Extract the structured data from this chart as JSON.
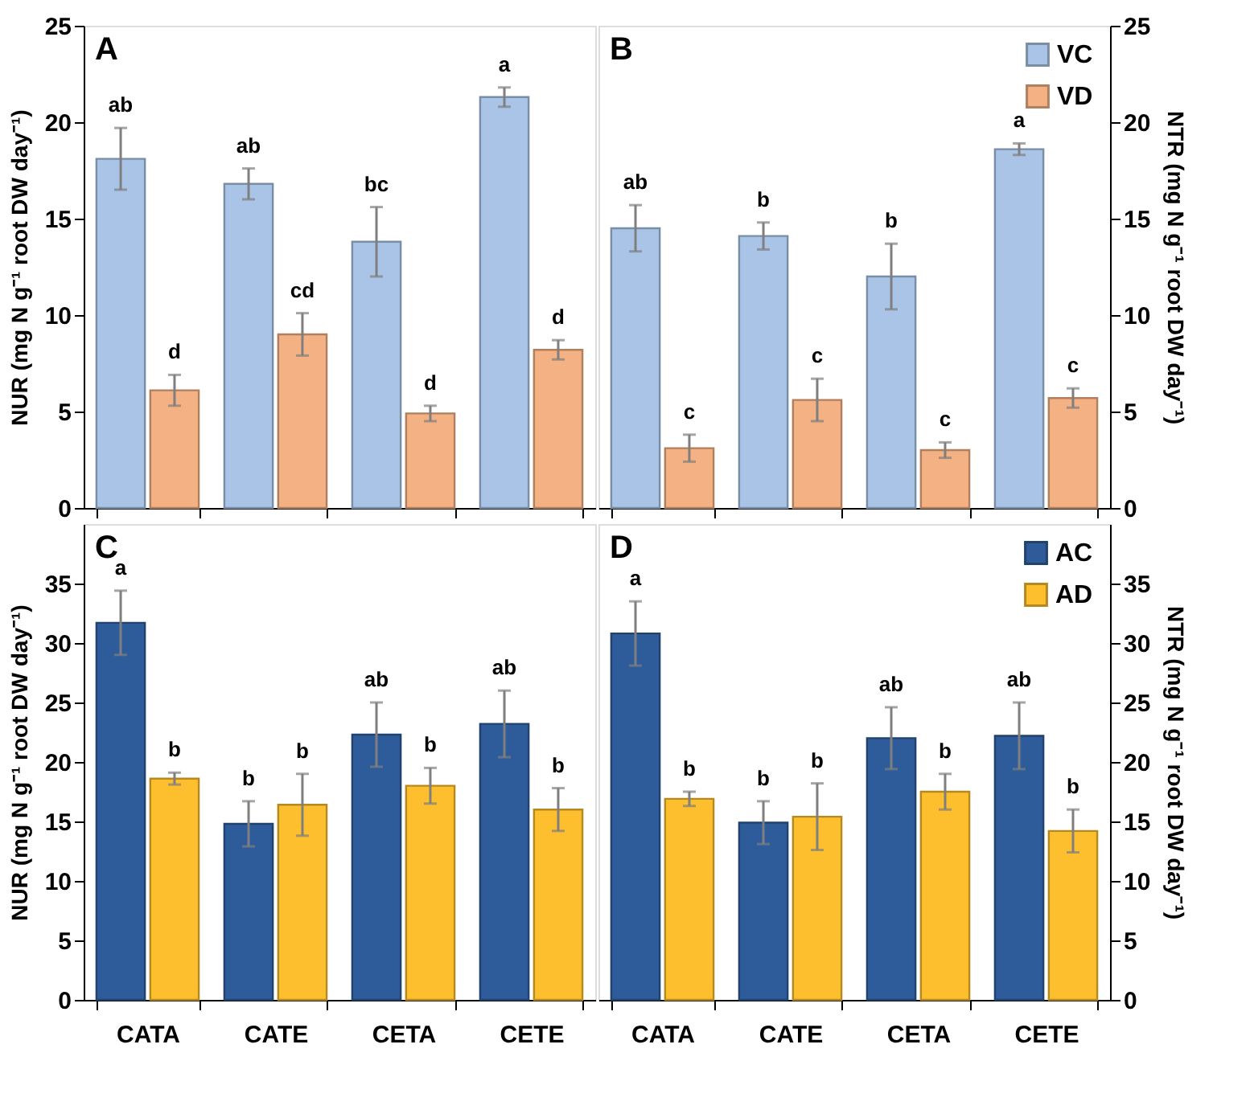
{
  "chart_data": [
    {
      "type": "bar",
      "categories": [
        null,
        null,
        null,
        null
      ],
      "ylabel": "NUR (mg N g⁻¹ root DW day⁻¹)",
      "ylim": [
        0,
        25
      ],
      "yticks": [
        0,
        5,
        10,
        15,
        20,
        25
      ],
      "tick_labels": "y",
      "series": [
        {
          "color": "#a9c4e6",
          "values": [
            18.1,
            16.8,
            13.8,
            21.3
          ],
          "errors": [
            1.6,
            0.8,
            1.8,
            0.5
          ]
        },
        {
          "color": "#f4b183",
          "values": [
            6.1,
            9.0,
            4.9,
            8.2
          ],
          "errors": [
            0.8,
            1.1,
            0.4,
            0.5
          ]
        }
      ],
      "annotations": [
        "A",
        "ab",
        "ab",
        "bc",
        "a",
        "d",
        "cd",
        "d",
        "d"
      ]
    },
    {
      "type": "bar",
      "categories": [
        null,
        null,
        null,
        null
      ],
      "ylabel": "NTR (mg N g⁻¹ root DW day⁻¹)",
      "ylim": [
        0,
        25
      ],
      "yticks": [
        0,
        5,
        10,
        15,
        20,
        25
      ],
      "tick_labels": "y",
      "legend": "top right",
      "series": [
        {
          "name": "VC",
          "color": "#a9c4e6",
          "values": [
            14.5,
            14.1,
            12.0,
            18.6
          ],
          "errors": [
            1.2,
            0.7,
            1.7,
            0.3
          ]
        },
        {
          "name": "VD",
          "color": "#f4b183",
          "values": [
            3.1,
            5.6,
            3.0,
            5.7
          ],
          "errors": [
            0.7,
            1.1,
            0.4,
            0.5
          ]
        }
      ],
      "annotations": [
        "B",
        "ab",
        "b",
        "b",
        "a",
        "c",
        "c",
        "c",
        "c"
      ]
    },
    {
      "type": "bar",
      "categories": [
        "CATA",
        "CATE",
        "CETA",
        "CETE"
      ],
      "ylabel": "NUR (mg N g⁻¹ root DW day⁻¹)",
      "ylim": [
        0,
        40
      ],
      "yticks": [
        0,
        5,
        10,
        15,
        20,
        25,
        30,
        35
      ],
      "series": [
        {
          "color": "#2e5c9a",
          "values": [
            31.7,
            14.8,
            22.3,
            23.2
          ],
          "errors": [
            2.7,
            1.9,
            2.7,
            2.8
          ]
        },
        {
          "color": "#fdbf2d",
          "values": [
            18.6,
            16.4,
            18.0,
            16.0
          ],
          "errors": [
            0.5,
            2.6,
            1.5,
            1.8
          ]
        }
      ],
      "annotations": [
        "C",
        "a",
        "b",
        "ab",
        "ab",
        "b",
        "b",
        "b",
        "b"
      ]
    },
    {
      "type": "bar",
      "categories": [
        "CATA",
        "CATE",
        "CETA",
        "CETE"
      ],
      "ylabel": "NTR (mg N g⁻¹ root DW day⁻¹)",
      "ylim": [
        0,
        40
      ],
      "yticks": [
        0,
        5,
        10,
        15,
        20,
        25,
        30,
        35
      ],
      "legend": "top right",
      "series": [
        {
          "name": "AC",
          "color": "#2e5c9a",
          "values": [
            30.8,
            14.9,
            22.0,
            22.2
          ],
          "errors": [
            2.7,
            1.8,
            2.6,
            2.8
          ]
        },
        {
          "name": "AD",
          "color": "#fdbf2d",
          "values": [
            16.9,
            15.4,
            17.5,
            14.2
          ],
          "errors": [
            0.6,
            2.8,
            1.5,
            1.8
          ]
        }
      ],
      "annotations": [
        "D",
        "a",
        "b",
        "ab",
        "ab",
        "b",
        "b",
        "b",
        "b"
      ]
    }
  ]
}
